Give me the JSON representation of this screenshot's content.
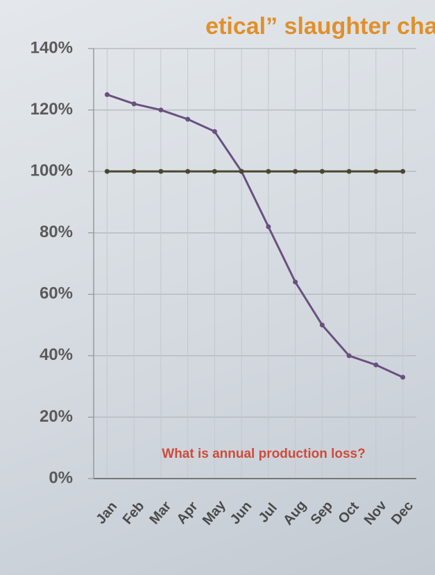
{
  "chart_data": {
    "type": "line",
    "title": "etical” slaughter char",
    "annotation": "What is annual production loss?",
    "categories": [
      "Jan",
      "Feb",
      "Mar",
      "Apr",
      "May",
      "Jun",
      "Jul",
      "Aug",
      "Sep",
      "Oct",
      "Nov",
      "Dec"
    ],
    "series": [
      {
        "color": "#6a5080",
        "values": [
          125,
          122,
          120,
          117,
          113,
          100,
          82,
          64,
          50,
          40,
          37,
          33
        ]
      },
      {
        "color": "#4a4630",
        "values": [
          100,
          100,
          100,
          100,
          100,
          100,
          100,
          100,
          100,
          100,
          100,
          100
        ]
      }
    ],
    "ylim": [
      0,
      140
    ],
    "yticks": [
      {
        "value": 0,
        "label": "0%"
      },
      {
        "value": 20,
        "label": "20%"
      },
      {
        "value": 40,
        "label": "40%"
      },
      {
        "value": 60,
        "label": "60%"
      },
      {
        "value": 80,
        "label": "80%"
      },
      {
        "value": 100,
        "label": "100%"
      },
      {
        "value": 120,
        "label": "120%"
      },
      {
        "value": 140,
        "label": "140%"
      }
    ],
    "grid": true
  }
}
